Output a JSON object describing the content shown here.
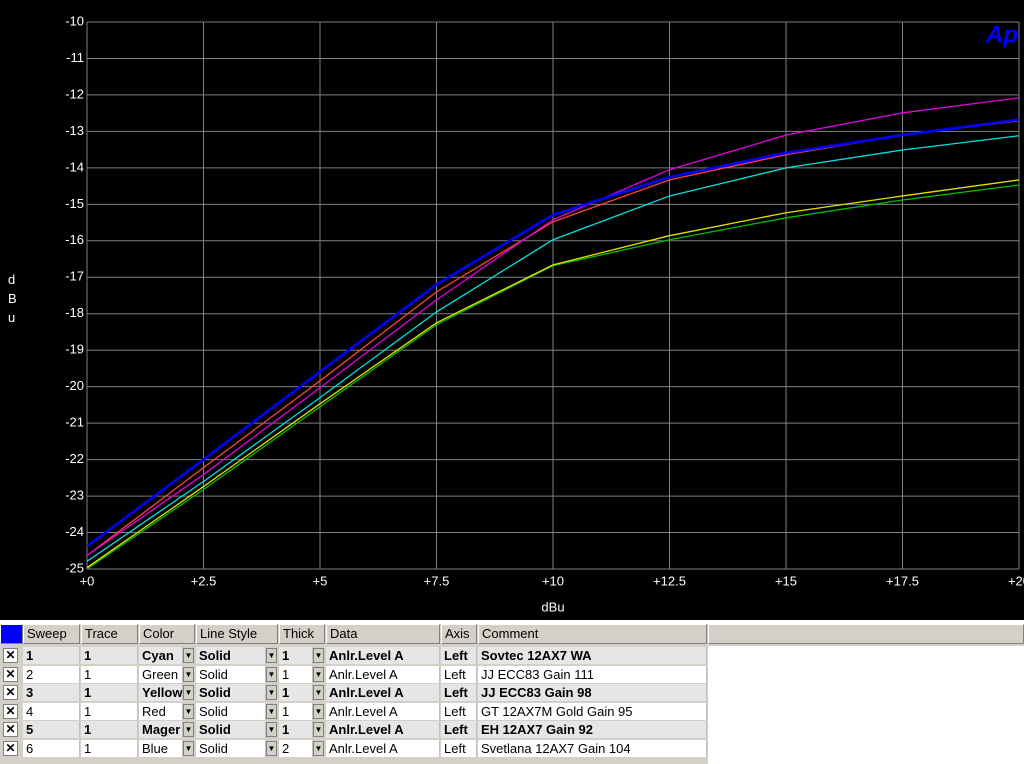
{
  "chart_data": {
    "type": "line",
    "x_label": "dBu",
    "y_label": "dBu",
    "logo": "Ap",
    "x": [
      0,
      2.5,
      5,
      7.5,
      10,
      12.5,
      15,
      17.5,
      20
    ],
    "series": [
      {
        "color": "#00e0e0",
        "width": 1,
        "values": [
          -24.79,
          -22.6,
          -20.3,
          -17.95,
          -15.97,
          -14.77,
          -14.0,
          -13.51,
          -13.12
        ]
      },
      {
        "color": "#00c000",
        "width": 1,
        "values": [
          -25.0,
          -22.82,
          -20.55,
          -18.3,
          -16.68,
          -15.97,
          -15.37,
          -14.88,
          -14.47
        ]
      },
      {
        "color": "#e0e000",
        "width": 1,
        "values": [
          -24.96,
          -22.74,
          -20.47,
          -18.25,
          -16.66,
          -15.86,
          -15.23,
          -14.77,
          -14.33
        ]
      },
      {
        "color": "#ff4040",
        "width": 1,
        "values": [
          -24.63,
          -22.22,
          -19.84,
          -17.4,
          -15.48,
          -14.33,
          -13.64,
          -13.1,
          -12.71
        ]
      },
      {
        "color": "#e000e0",
        "width": 1,
        "values": [
          -24.63,
          -22.41,
          -20.03,
          -17.62,
          -15.42,
          -14.05,
          -13.1,
          -12.49,
          -12.08
        ]
      },
      {
        "color": "#0000ff",
        "width": 2,
        "values": [
          -24.38,
          -22.0,
          -19.59,
          -17.2,
          -15.29,
          -14.25,
          -13.59,
          -13.1,
          -12.68
        ]
      }
    ],
    "xlim": [
      0,
      20
    ],
    "xticks": [
      {
        "value": 0,
        "label": "+0"
      },
      {
        "value": 2.5,
        "label": "+2.5"
      },
      {
        "value": 5,
        "label": "+5"
      },
      {
        "value": 7.5,
        "label": "+7.5"
      },
      {
        "value": 10,
        "label": "+10"
      },
      {
        "value": 12.5,
        "label": "+12.5"
      },
      {
        "value": 15,
        "label": "+15"
      },
      {
        "value": 17.5,
        "label": "+17.5"
      },
      {
        "value": 20,
        "label": "+20"
      }
    ],
    "ylim": [
      -25,
      -10
    ],
    "yticks": [
      -10,
      -11,
      -12,
      -13,
      -14,
      -15,
      -16,
      -17,
      -18,
      -19,
      -20,
      -21,
      -22,
      -23,
      -24,
      -25
    ],
    "grid": true
  },
  "table": {
    "columns": [
      "Sweep",
      "Trace",
      "Color",
      "Line Style",
      "Thick",
      "Data",
      "Axis",
      "Comment"
    ],
    "rows": [
      [
        "1",
        "1",
        "Cyan",
        "Solid",
        "1",
        "Anlr.Level A",
        "Left",
        "Sovtec 12AX7 WA"
      ],
      [
        "2",
        "1",
        "Green",
        "Solid",
        "1",
        "Anlr.Level A",
        "Left",
        "JJ ECC83 Gain 111"
      ],
      [
        "3",
        "1",
        "Yellow",
        "Solid",
        "1",
        "Anlr.Level A",
        "Left",
        "JJ ECC83 Gain 98"
      ],
      [
        "4",
        "1",
        "Red",
        "Solid",
        "1",
        "Anlr.Level A",
        "Left",
        "GT 12AX7M Gold Gain 95"
      ],
      [
        "5",
        "1",
        "Mager",
        "Solid",
        "1",
        "Anlr.Level A",
        "Left",
        "EH 12AX7 Gain 92"
      ],
      [
        "6",
        "1",
        "Blue",
        "Solid",
        "2",
        "Anlr.Level A",
        "Left",
        "Svetlana 12AX7 Gain 104"
      ]
    ]
  }
}
